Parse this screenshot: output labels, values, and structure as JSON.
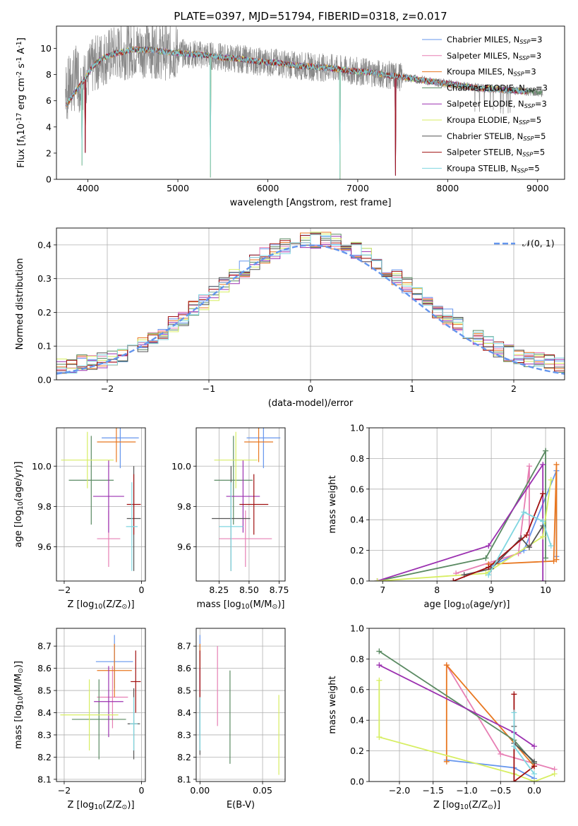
{
  "figure": {
    "title": "PLATE=0397, MJD=51794, FIBERID=0318, z=0.017"
  },
  "colors": {
    "Chabrier MILES": "#6495ed",
    "Salpeter MILES": "#e77fb4",
    "Kroupa MILES": "#e87720",
    "Chabrier ELODIE": "#5a8a62",
    "Salpeter ELODIE": "#9b30b0",
    "Kroupa ELODIE": "#d7ee62",
    "Chabrier STELIB": "#555555",
    "Salpeter STELIB": "#a01010",
    "Kroupa STELIB": "#7fd6e0"
  },
  "chart_data": [
    {
      "id": "spectrum",
      "type": "line",
      "title": "PLATE=0397, MJD=51794, FIBERID=0318, z=0.017",
      "xlabel": "wavelength [Angstrom, rest frame]",
      "ylabel": "Flux [f$_\\lambda$10$^{-17}$ erg cm$^{-2}$ s$^{-1}$ A$^{-1}$]",
      "xlim": [
        3650,
        9300
      ],
      "ylim": [
        0,
        11.7
      ],
      "xticks": [
        4000,
        5000,
        6000,
        7000,
        8000,
        9000
      ],
      "yticks": [
        0,
        2,
        4,
        6,
        8,
        10
      ],
      "grid": false,
      "legend_loc": "upper right",
      "legend": [
        {
          "name": "Chabrier MILES",
          "sub": "SSP",
          "n": "3"
        },
        {
          "name": "Salpeter MILES",
          "sub": "SSP",
          "n": "3"
        },
        {
          "name": "Kroupa MILES",
          "sub": "SSP",
          "n": "3"
        },
        {
          "name": "Chabrier ELODIE",
          "sub": "SSP",
          "n": "3"
        },
        {
          "name": "Salpeter ELODIE",
          "sub": "SSP",
          "n": "3"
        },
        {
          "name": "Kroupa ELODIE",
          "sub": "SSP",
          "n": "5"
        },
        {
          "name": "Chabrier STELIB",
          "sub": "SSP",
          "n": "5"
        },
        {
          "name": "Salpeter STELIB",
          "sub": "SSP",
          "n": "5"
        },
        {
          "name": "Kroupa STELIB",
          "sub": "SSP",
          "n": "5"
        }
      ],
      "data_continuum": {
        "x": [
          3750,
          3850,
          3950,
          4050,
          4150,
          4300,
          4500,
          4700,
          4900,
          5100,
          5300,
          5500,
          5700,
          5900,
          6100,
          6300,
          6500,
          6700,
          6900,
          7100,
          7300,
          7500,
          7700,
          7900,
          8100,
          8300,
          8500,
          8700,
          8900,
          9050
        ],
        "y": [
          6.8,
          7.5,
          8.1,
          8.9,
          9.2,
          9.6,
          9.9,
          9.9,
          9.7,
          9.6,
          9.5,
          9.3,
          9.2,
          9.0,
          8.9,
          8.7,
          8.6,
          8.5,
          8.3,
          8.2,
          8.0,
          7.8,
          7.6,
          7.4,
          7.2,
          7.0,
          6.9,
          6.8,
          6.7,
          6.6
        ]
      },
      "model_dips": [
        {
          "x": 3935,
          "depth": 6.3
        },
        {
          "x": 3970,
          "depth": 5.7
        },
        {
          "x": 5360,
          "depth": 9.3
        },
        {
          "x": 6800,
          "depth": 8.5
        },
        {
          "x": 7420,
          "depth": 7.6
        }
      ]
    },
    {
      "id": "residuals",
      "type": "histogram",
      "xlabel": "(data-model)/error",
      "ylabel": "Normed distribution",
      "xlim": [
        -2.5,
        2.5
      ],
      "ylim": [
        0,
        0.45
      ],
      "xticks": [
        -2,
        -1,
        0,
        1,
        2
      ],
      "yticks": [
        0.0,
        0.1,
        0.2,
        0.3,
        0.4
      ],
      "grid": true,
      "bin_width": 0.1,
      "legend": [
        {
          "name": "$\\mathcal{N}(0,1)$",
          "style": "dashed",
          "color": "#6495ed"
        }
      ]
    },
    {
      "id": "z-age",
      "type": "errorbar",
      "xlabel": "Z [log$_{10}$($Z/Z_\\odot$)]",
      "ylabel": "age  [log$_{10}$($age/yr$)]",
      "xlim": [
        -2.2,
        0.1
      ],
      "ylim": [
        9.43,
        10.19
      ],
      "xticks": [
        -2,
        0
      ],
      "yticks": [
        9.6,
        9.8,
        10.0
      ],
      "grid": true,
      "points": [
        {
          "model": "Chabrier MILES",
          "x": -0.55,
          "xerr": 0.48,
          "y": 10.14,
          "yerr": 0.15
        },
        {
          "model": "Salpeter MILES",
          "x": -0.85,
          "xerr": 0.3,
          "y": 9.64,
          "yerr": 0.14
        },
        {
          "model": "Kroupa MILES",
          "x": -0.65,
          "xerr": 0.5,
          "y": 10.12,
          "yerr": 0.1
        },
        {
          "model": "Chabrier ELODIE",
          "x": -1.3,
          "xerr": 0.58,
          "y": 9.93,
          "yerr": 0.22
        },
        {
          "model": "Salpeter ELODIE",
          "x": -0.85,
          "xerr": 0.4,
          "y": 9.85,
          "yerr": 0.18
        },
        {
          "model": "Kroupa ELODIE",
          "x": -1.4,
          "xerr": 0.68,
          "y": 10.03,
          "yerr": 0.14
        },
        {
          "model": "Chabrier STELIB",
          "x": -0.2,
          "xerr": 0.18,
          "y": 9.74,
          "yerr": 0.26
        },
        {
          "model": "Salpeter STELIB",
          "x": -0.2,
          "xerr": 0.18,
          "y": 9.81,
          "yerr": 0.15
        },
        {
          "model": "Kroupa STELIB",
          "x": -0.25,
          "xerr": 0.15,
          "y": 9.7,
          "yerr": 0.22
        }
      ]
    },
    {
      "id": "mass-age",
      "type": "errorbar",
      "xlabel": "mass [log$_{10}$($M/M_\\odot$)]",
      "ylabel": "",
      "xlim": [
        8.06,
        8.8
      ],
      "ylim": [
        9.43,
        10.19
      ],
      "xticks": [
        8.25,
        8.5,
        8.75
      ],
      "yticks": [
        9.6,
        9.8,
        10.0
      ],
      "grid": true,
      "points": [
        {
          "model": "Chabrier MILES",
          "x": 8.62,
          "xerr": 0.14,
          "y": 10.14,
          "yerr": 0.15
        },
        {
          "model": "Salpeter MILES",
          "x": 8.47,
          "xerr": 0.22,
          "y": 9.64,
          "yerr": 0.14
        },
        {
          "model": "Kroupa MILES",
          "x": 8.58,
          "xerr": 0.12,
          "y": 10.12,
          "yerr": 0.1
        },
        {
          "model": "Chabrier ELODIE",
          "x": 8.37,
          "xerr": 0.16,
          "y": 9.93,
          "yerr": 0.22
        },
        {
          "model": "Salpeter ELODIE",
          "x": 8.45,
          "xerr": 0.14,
          "y": 9.85,
          "yerr": 0.18
        },
        {
          "model": "Kroupa ELODIE",
          "x": 8.39,
          "xerr": 0.18,
          "y": 10.03,
          "yerr": 0.14
        },
        {
          "model": "Chabrier STELIB",
          "x": 8.35,
          "xerr": 0.16,
          "y": 9.74,
          "yerr": 0.26
        },
        {
          "model": "Salpeter STELIB",
          "x": 8.54,
          "xerr": 0.12,
          "y": 9.81,
          "yerr": 0.15
        },
        {
          "model": "Kroupa STELIB",
          "x": 8.35,
          "xerr": 0.1,
          "y": 9.7,
          "yerr": 0.22
        }
      ]
    },
    {
      "id": "age-weight",
      "type": "line",
      "xlabel": "age  [log$_{10}$($age/yr$)]",
      "ylabel": "mass weight",
      "xlim": [
        6.75,
        10.35
      ],
      "ylim": [
        0,
        1
      ],
      "xticks": [
        7,
        8,
        9,
        10
      ],
      "yticks": [
        0.0,
        0.2,
        0.4,
        0.6,
        0.8,
        1.0
      ],
      "grid": true,
      "series": [
        {
          "model": "Chabrier MILES",
          "x": [
            8.95,
            9.6,
            10.2,
            10.2
          ],
          "y": [
            0.09,
            0.2,
            0.72,
            0.16
          ]
        },
        {
          "model": "Salpeter MILES",
          "x": [
            8.35,
            9.5,
            9.7,
            9.7
          ],
          "y": [
            0.05,
            0.18,
            0.75,
            0.23
          ]
        },
        {
          "model": "Kroupa MILES",
          "x": [
            8.95,
            10.15,
            10.2,
            10.2
          ],
          "y": [
            0.11,
            0.13,
            0.76,
            0.14
          ]
        },
        {
          "model": "Chabrier ELODIE",
          "x": [
            6.9,
            8.9,
            10.0,
            10.0
          ],
          "y": [
            0.0,
            0.15,
            0.85,
            0.15
          ]
        },
        {
          "model": "Salpeter ELODIE",
          "x": [
            6.9,
            8.95,
            9.95,
            9.95
          ],
          "y": [
            0.0,
            0.23,
            0.76,
            0.0
          ]
        },
        {
          "model": "Kroupa ELODIE",
          "x": [
            6.9,
            8.9,
            9.95,
            10.1
          ],
          "y": [
            0.0,
            0.05,
            0.29,
            0.66
          ]
        },
        {
          "model": "Chabrier STELIB",
          "x": [
            8.5,
            9.0,
            9.55,
            9.7,
            9.95
          ],
          "y": [
            0.04,
            0.08,
            0.28,
            0.22,
            0.36
          ]
        },
        {
          "model": "Salpeter STELIB",
          "x": [
            8.3,
            8.95,
            9.65,
            9.95
          ],
          "y": [
            0.0,
            0.09,
            0.3,
            0.57
          ]
        },
        {
          "model": "Kroupa STELIB",
          "x": [
            8.95,
            9.6,
            9.95,
            10.1
          ],
          "y": [
            0.04,
            0.45,
            0.39,
            0.23
          ]
        }
      ]
    },
    {
      "id": "z-mass",
      "type": "errorbar",
      "xlabel": "Z [log$_{10}$($Z/Z_\\odot$)]",
      "ylabel": "mass [log$_{10}$($M/M_\\odot$)]",
      "xlim": [
        -2.2,
        0.1
      ],
      "ylim": [
        8.09,
        8.78
      ],
      "xticks": [
        -2,
        0
      ],
      "yticks": [
        8.1,
        8.2,
        8.3,
        8.4,
        8.5,
        8.6,
        8.7
      ],
      "grid": true,
      "points": [
        {
          "model": "Chabrier MILES",
          "x": -0.7,
          "xerr": 0.48,
          "y": 8.63,
          "yerr": 0.12
        },
        {
          "model": "Salpeter MILES",
          "x": -0.75,
          "xerr": 0.4,
          "y": 8.47,
          "yerr": 0.14
        },
        {
          "model": "Kroupa MILES",
          "x": -0.7,
          "xerr": 0.45,
          "y": 8.59,
          "yerr": 0.12
        },
        {
          "model": "Chabrier ELODIE",
          "x": -1.1,
          "xerr": 0.7,
          "y": 8.37,
          "yerr": 0.18
        },
        {
          "model": "Salpeter ELODIE",
          "x": -0.85,
          "xerr": 0.38,
          "y": 8.45,
          "yerr": 0.16
        },
        {
          "model": "Kroupa ELODIE",
          "x": -1.35,
          "xerr": 0.75,
          "y": 8.39,
          "yerr": 0.16
        },
        {
          "model": "Chabrier STELIB",
          "x": -0.2,
          "xerr": 0.16,
          "y": 8.35,
          "yerr": 0.16
        },
        {
          "model": "Salpeter STELIB",
          "x": -0.15,
          "xerr": 0.13,
          "y": 8.54,
          "yerr": 0.14
        },
        {
          "model": "Kroupa STELIB",
          "x": -0.2,
          "xerr": 0.1,
          "y": 8.35,
          "yerr": 0.12
        }
      ]
    },
    {
      "id": "ebv-mass",
      "type": "errorbar",
      "xlabel": "E(B-V)",
      "ylabel": "",
      "xlim": [
        -0.003,
        0.068
      ],
      "ylim": [
        8.09,
        8.78
      ],
      "xticks": [
        0.0,
        0.05
      ],
      "yticks": [
        8.1,
        8.2,
        8.3,
        8.4,
        8.5,
        8.6,
        8.7
      ],
      "grid": true,
      "points": [
        {
          "model": "Chabrier MILES",
          "x": 0.0,
          "y": 8.63,
          "yerr": 0.12
        },
        {
          "model": "Salpeter MILES",
          "x": 0.014,
          "y": 8.52,
          "yerr": 0.18
        },
        {
          "model": "Kroupa MILES",
          "x": 0.0,
          "y": 8.59,
          "yerr": 0.12
        },
        {
          "model": "Chabrier ELODIE",
          "x": 0.024,
          "y": 8.38,
          "yerr": 0.21
        },
        {
          "model": "Salpeter ELODIE",
          "x": 0.0,
          "y": 8.45,
          "yerr": 0.15
        },
        {
          "model": "Kroupa ELODIE",
          "x": 0.063,
          "y": 8.3,
          "yerr": 0.18
        },
        {
          "model": "Chabrier STELIB",
          "x": 0.0,
          "y": 8.35,
          "yerr": 0.14
        },
        {
          "model": "Salpeter STELIB",
          "x": 0.0,
          "y": 8.54,
          "yerr": 0.14
        },
        {
          "model": "Kroupa STELIB",
          "x": 0.0,
          "y": 8.35,
          "yerr": 0.12
        }
      ]
    },
    {
      "id": "z-weight",
      "type": "line",
      "xlabel": "Z [log$_{10}$($Z/Z_\\odot$)]",
      "ylabel": "mass weight",
      "xlim": [
        -2.45,
        0.45
      ],
      "ylim": [
        0,
        1
      ],
      "xticks": [
        -2.0,
        -1.5,
        -1.0,
        -0.5,
        0.0
      ],
      "yticks": [
        0.0,
        0.2,
        0.4,
        0.6,
        0.8,
        1.0
      ],
      "grid": true,
      "series": [
        {
          "model": "Chabrier MILES",
          "x": [
            -1.3,
            -0.3,
            0.0
          ],
          "y": [
            0.14,
            0.09,
            0.02
          ]
        },
        {
          "model": "Salpeter MILES",
          "x": [
            -1.3,
            -0.5,
            0.3
          ],
          "y": [
            0.76,
            0.18,
            0.08
          ]
        },
        {
          "model": "Kroupa MILES",
          "x": [
            -1.3,
            -1.3,
            0.0
          ],
          "y": [
            0.13,
            0.76,
            0.1
          ]
        },
        {
          "model": "Chabrier ELODIE",
          "x": [
            -2.3,
            -0.3,
            0.0
          ],
          "y": [
            0.85,
            0.27,
            0.12
          ]
        },
        {
          "model": "Salpeter ELODIE",
          "x": [
            -2.3,
            -0.3,
            0.0
          ],
          "y": [
            0.76,
            0.32,
            0.23
          ]
        },
        {
          "model": "Kroupa ELODIE",
          "x": [
            -2.3,
            -2.3,
            -0.3,
            0.0,
            0.3
          ],
          "y": [
            0.66,
            0.29,
            0.05,
            0.0,
            0.05
          ]
        },
        {
          "model": "Chabrier STELIB",
          "x": [
            -0.3,
            -0.3,
            0.0
          ],
          "y": [
            0.36,
            0.25,
            0.13
          ]
        },
        {
          "model": "Salpeter STELIB",
          "x": [
            -0.3,
            -0.3,
            0.0
          ],
          "y": [
            0.57,
            0.0,
            0.1
          ]
        },
        {
          "model": "Kroupa STELIB",
          "x": [
            -0.3,
            -0.3,
            0.0
          ],
          "y": [
            0.45,
            0.23,
            0.05
          ]
        }
      ]
    }
  ]
}
